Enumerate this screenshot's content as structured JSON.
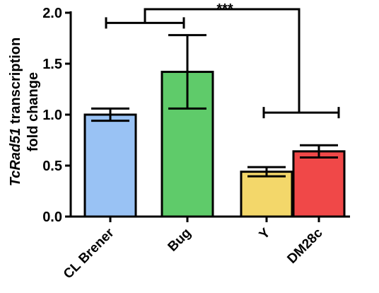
{
  "chart_data": {
    "type": "bar",
    "categories": [
      "CL Brener",
      "Bug",
      "Y",
      "DM28c"
    ],
    "values": [
      1.0,
      1.42,
      0.44,
      0.64
    ],
    "errors": [
      0.06,
      0.36,
      0.045,
      0.06
    ],
    "colors": [
      "#99c2f4",
      "#5fcb6a",
      "#f3d76a",
      "#f04848"
    ],
    "title": "",
    "ylabel_italic": "TcRad51",
    "ylabel_rest": " transcription",
    "ylabel_line2": "fold change",
    "ylim": [
      0,
      2.0
    ],
    "yticks": [
      0.0,
      0.5,
      1.0,
      1.5,
      2.0
    ],
    "ytick_labels": [
      "0.0",
      "0.5",
      "1.0",
      "1.5",
      "2.0"
    ],
    "significance": {
      "label": "***",
      "group_a": [
        "CL Brener",
        "Bug"
      ],
      "group_b": [
        "Y",
        "DM28c"
      ]
    }
  }
}
